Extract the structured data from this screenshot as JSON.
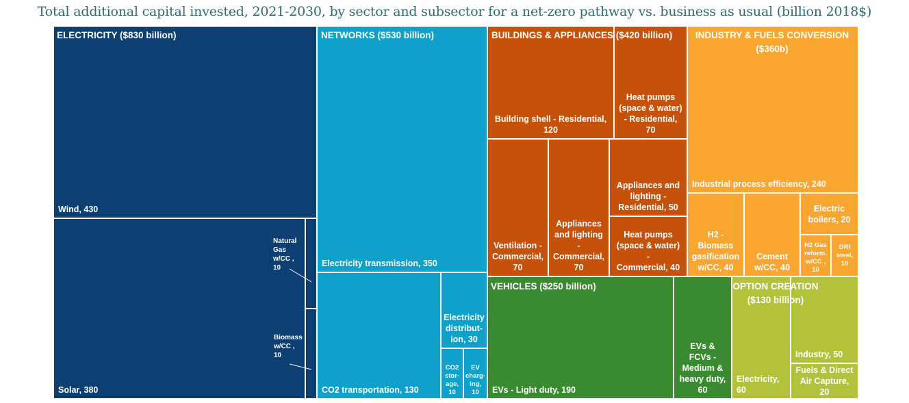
{
  "chart_data": {
    "type": "treemap",
    "title": "Total additional capital invested, 2021-2030, by sector and subsector for a net-zero pathway vs. business as usual (billion 2018$)",
    "sectors": [
      {
        "name": "ELECTRICITY ($830 billion)",
        "color": "#0d3f73",
        "children": [
          {
            "label": "Wind, 430",
            "name": "Wind",
            "value": 430
          },
          {
            "label": "Solar, 380",
            "name": "Solar",
            "value": 380
          },
          {
            "label": "Natural\nGas\nw/CC ,\n10",
            "name": "Natural Gas w/CC",
            "value": 10
          },
          {
            "label": "Biomass\nw/CC ,\n10",
            "name": "Biomass w/CC",
            "value": 10
          }
        ]
      },
      {
        "name": "NETWORKS ($530 billion)",
        "color": "#0fa1c9",
        "children": [
          {
            "label": "Electricity transmission, 350",
            "name": "Electricity transmission",
            "value": 350
          },
          {
            "label": "CO2 transportation, 130",
            "name": "CO2 transportation",
            "value": 130
          },
          {
            "label": "Electricity\ndistribut-\nion, 30",
            "name": "Electricity distribution",
            "value": 30
          },
          {
            "label": "CO2\nstor-\nage,\n10",
            "name": "CO2 storage",
            "value": 10
          },
          {
            "label": "EV\ncharg-\ning,\n10",
            "name": "EV charging",
            "value": 10
          }
        ]
      },
      {
        "name": "BUILDINGS & APPLIANCES ($420 billion)",
        "color": "#c6510a",
        "children": [
          {
            "label": "Building shell - Residential,\n120",
            "name": "Building shell - Residential",
            "value": 120
          },
          {
            "label": "Heat pumps\n(space & water)\n- Residential, 70",
            "name": "Heat pumps (space & water) - Residential",
            "value": 70
          },
          {
            "label": "Ventilation -\nCommercial,\n70",
            "name": "Ventilation - Commercial",
            "value": 70
          },
          {
            "label": "Appliances\nand lighting -\nCommercial,\n70",
            "name": "Appliances and lighting - Commercial",
            "value": 70
          },
          {
            "label": "Appliances and\nlighting -\nResidential, 50",
            "name": "Appliances and lighting - Residential",
            "value": 50
          },
          {
            "label": "Heat pumps\n(space & water) -\nCommercial, 40",
            "name": "Heat pumps (space & water) - Commercial",
            "value": 40
          }
        ]
      },
      {
        "name": "INDUSTRY & FUELS CONVERSION\n($360b)",
        "color": "#f9a630",
        "children": [
          {
            "label": "Industrial process efficiency, 240",
            "name": "Industrial process efficiency",
            "value": 240
          },
          {
            "label": "H2 -\nBiomass\ngasification\nw/CC, 40",
            "name": "H2 - Biomass gasification w/CC",
            "value": 40
          },
          {
            "label": "Cement\nw/CC, 40",
            "name": "Cement w/CC",
            "value": 40
          },
          {
            "label": "Electric\nboilers, 20",
            "name": "Electric boilers",
            "value": 20
          },
          {
            "label": "H2 Gas\nreform.\nw/CC ,\n10",
            "name": "H2 Gas reform. w/CC",
            "value": 10
          },
          {
            "label": "DRI\nsteel,\n10",
            "name": "DRI steel",
            "value": 10
          }
        ]
      },
      {
        "name": "VEHICLES ($250 billion)",
        "color": "#3a8a32",
        "children": [
          {
            "label": "EVs - Light duty, 190",
            "name": "EVs - Light duty",
            "value": 190
          },
          {
            "label": "EVs & FCVs -\nMedium &\nheavy duty,\n60",
            "name": "EVs & FCVs - Medium & heavy duty",
            "value": 60
          }
        ]
      },
      {
        "name": "OPTION CREATION\n($130 billion)",
        "color": "#b2c23a",
        "children": [
          {
            "label": "Electricity,\n60",
            "name": "Electricity",
            "value": 60
          },
          {
            "label": "Industry, 50",
            "name": "Industry",
            "value": 50
          },
          {
            "label": "Fuels & Direct\nAir Capture, 20",
            "name": "Fuels & Direct Air Capture",
            "value": 20
          }
        ]
      }
    ]
  }
}
